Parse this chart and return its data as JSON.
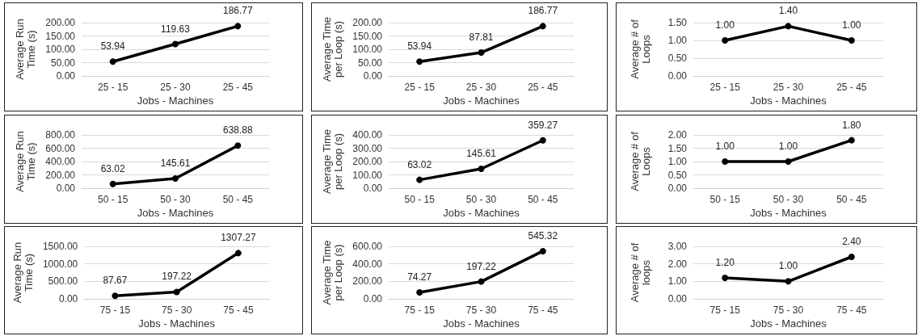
{
  "chart_data": [
    {
      "type": "line",
      "xlabel": "Jobs - Machines",
      "ylabel": "Average Run Time (s)",
      "categories": [
        "25 - 15",
        "25 - 30",
        "25 - 45"
      ],
      "series": [
        {
          "color": "#000000",
          "values": [
            53.94,
            119.63,
            186.77
          ],
          "value_labels": [
            "53.94",
            "119.63",
            "186.77"
          ]
        }
      ],
      "ylim": [
        0,
        200
      ],
      "yticks": [
        {
          "value": 0,
          "label": "0.00"
        },
        {
          "value": 50,
          "label": "50.00"
        },
        {
          "value": 100,
          "label": "100.00"
        },
        {
          "value": 150,
          "label": "150.00"
        },
        {
          "value": 200,
          "label": "200.00"
        }
      ],
      "grid": "y",
      "marker": "circle",
      "line_style": "solid"
    },
    {
      "type": "line",
      "xlabel": "Jobs - Machines",
      "ylabel": "Average Time per Loop (s)",
      "categories": [
        "25 - 15",
        "25 - 30",
        "25 - 45"
      ],
      "series": [
        {
          "color": "#000000",
          "values": [
            53.94,
            87.81,
            186.77
          ],
          "value_labels": [
            "53.94",
            "87.81",
            "186.77"
          ]
        }
      ],
      "ylim": [
        0,
        200
      ],
      "yticks": [
        {
          "value": 0,
          "label": "0.00"
        },
        {
          "value": 50,
          "label": "50.00"
        },
        {
          "value": 100,
          "label": "100.00"
        },
        {
          "value": 150,
          "label": "150.00"
        },
        {
          "value": 200,
          "label": "200.00"
        }
      ],
      "grid": "y",
      "marker": "circle",
      "line_style": "solid"
    },
    {
      "type": "line",
      "xlabel": "Jobs - Machines",
      "ylabel": "Average # of Loops",
      "categories": [
        "25 - 15",
        "25 - 30",
        "25 - 45"
      ],
      "series": [
        {
          "color": "#000000",
          "values": [
            1,
            1.4,
            1
          ],
          "value_labels": [
            "1.00",
            "1.40",
            "1.00"
          ]
        }
      ],
      "ylim": [
        0,
        1.5
      ],
      "yticks": [
        {
          "value": 0,
          "label": "0.00"
        },
        {
          "value": 0.5,
          "label": "0.50"
        },
        {
          "value": 1,
          "label": "1.00"
        },
        {
          "value": 1.5,
          "label": "1.50"
        }
      ],
      "grid": "y",
      "marker": "circle",
      "line_style": "solid"
    },
    {
      "type": "line",
      "xlabel": "Jobs - Machines",
      "ylabel": "Average Run Time (s)",
      "categories": [
        "50 - 15",
        "50 - 30",
        "50 - 45"
      ],
      "series": [
        {
          "color": "#000000",
          "values": [
            63.02,
            145.61,
            638.88
          ],
          "value_labels": [
            "63.02",
            "145.61",
            "638.88"
          ]
        }
      ],
      "ylim": [
        0,
        800
      ],
      "yticks": [
        {
          "value": 0,
          "label": "0.00"
        },
        {
          "value": 200,
          "label": "200.00"
        },
        {
          "value": 400,
          "label": "400.00"
        },
        {
          "value": 600,
          "label": "600.00"
        },
        {
          "value": 800,
          "label": "800.00"
        }
      ],
      "grid": "y",
      "marker": "circle",
      "line_style": "solid"
    },
    {
      "type": "line",
      "xlabel": "Jobs - Machines",
      "ylabel": "Average Time per Loop (s)",
      "categories": [
        "50 - 15",
        "50 - 30",
        "50 - 45"
      ],
      "series": [
        {
          "color": "#000000",
          "values": [
            63.02,
            145.61,
            359.27
          ],
          "value_labels": [
            "63.02",
            "145.61",
            "359.27"
          ]
        }
      ],
      "ylim": [
        0,
        400
      ],
      "yticks": [
        {
          "value": 0,
          "label": "0.00"
        },
        {
          "value": 100,
          "label": "100.00"
        },
        {
          "value": 200,
          "label": "200.00"
        },
        {
          "value": 300,
          "label": "300.00"
        },
        {
          "value": 400,
          "label": "400.00"
        }
      ],
      "grid": "y",
      "marker": "circle",
      "line_style": "solid"
    },
    {
      "type": "line",
      "xlabel": "Jobs - Machines",
      "ylabel": "Average # of Loops",
      "categories": [
        "50 - 15",
        "50 - 30",
        "50 - 45"
      ],
      "series": [
        {
          "color": "#000000",
          "values": [
            1,
            1,
            1.8
          ],
          "value_labels": [
            "1.00",
            "1.00",
            "1.80"
          ]
        }
      ],
      "ylim": [
        0,
        2
      ],
      "yticks": [
        {
          "value": 0,
          "label": "0.00"
        },
        {
          "value": 0.5,
          "label": "0.50"
        },
        {
          "value": 1,
          "label": "1.00"
        },
        {
          "value": 1.5,
          "label": "1.50"
        },
        {
          "value": 2,
          "label": "2.00"
        }
      ],
      "grid": "y",
      "marker": "circle",
      "line_style": "solid"
    },
    {
      "type": "line",
      "xlabel": "Jobs - Machines",
      "ylabel": "Average Run Time (s)",
      "categories": [
        "75 - 15",
        "75 - 30",
        "75 - 45"
      ],
      "series": [
        {
          "color": "#000000",
          "values": [
            87.67,
            197.22,
            1307.27
          ],
          "value_labels": [
            "87.67",
            "197.22",
            "1307.27"
          ]
        }
      ],
      "ylim": [
        0,
        1500
      ],
      "yticks": [
        {
          "value": 0,
          "label": "0.00"
        },
        {
          "value": 500,
          "label": "500.00"
        },
        {
          "value": 1000,
          "label": "1000.00"
        },
        {
          "value": 1500,
          "label": "1500.00"
        }
      ],
      "grid": "y",
      "marker": "circle",
      "line_style": "solid"
    },
    {
      "type": "line",
      "xlabel": "Jobs - Machines",
      "ylabel": "Average Time per Loop (s)",
      "categories": [
        "75 - 15",
        "75 - 30",
        "75 - 45"
      ],
      "series": [
        {
          "color": "#000000",
          "values": [
            74.27,
            197.22,
            545.32
          ],
          "value_labels": [
            "74.27",
            "197.22",
            "545.32"
          ]
        }
      ],
      "ylim": [
        0,
        600
      ],
      "yticks": [
        {
          "value": 0,
          "label": "0.00"
        },
        {
          "value": 200,
          "label": "200.00"
        },
        {
          "value": 400,
          "label": "400.00"
        },
        {
          "value": 600,
          "label": "600.00"
        }
      ],
      "grid": "y",
      "marker": "circle",
      "line_style": "solid"
    },
    {
      "type": "line",
      "xlabel": "Jobs - Machines",
      "ylabel": "Average # of loops",
      "categories": [
        "75 - 15",
        "75 - 30",
        "75 - 45"
      ],
      "series": [
        {
          "color": "#000000",
          "values": [
            1.2,
            1,
            2.4
          ],
          "value_labels": [
            "1.20",
            "1.00",
            "2.40"
          ]
        }
      ],
      "ylim": [
        0,
        3
      ],
      "yticks": [
        {
          "value": 0,
          "label": "0.00"
        },
        {
          "value": 1,
          "label": "1.00"
        },
        {
          "value": 2,
          "label": "2.00"
        },
        {
          "value": 3,
          "label": "3.00"
        }
      ],
      "grid": "y",
      "marker": "circle",
      "line_style": "solid"
    }
  ]
}
